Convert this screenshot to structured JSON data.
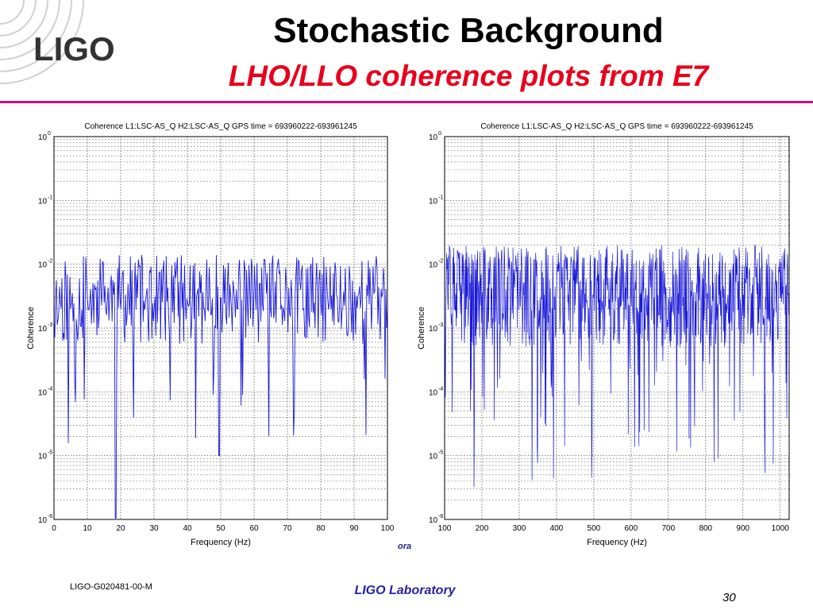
{
  "logo": {
    "text": "LIGO",
    "icon": "ligo-logo-icon"
  },
  "slide": {
    "title": "Stochastic Background",
    "subtitle": "LHO/LLO coherence plots from E7",
    "cropped_text": "ora"
  },
  "footer": {
    "doc_id": "LIGO-G020481-00-M",
    "lab": "LIGO Laboratory",
    "page": "30"
  },
  "colors": {
    "series": "#1a1ad9",
    "title_accent": "#e8001c",
    "rule": "#d40f7d",
    "footer": "#2222aa"
  },
  "chart_data": [
    {
      "type": "line",
      "title": "Coherence L1:LSC-AS_Q H2:LSC-AS_Q  GPS time = 693960222-693961245",
      "xlabel": "Frequency (Hz)",
      "ylabel": "Coherence",
      "xlim": [
        0,
        100
      ],
      "ylim": [
        1e-06,
        1
      ],
      "yscale": "log",
      "grid": true,
      "x_ticks": [
        "0",
        "10",
        "20",
        "30",
        "40",
        "50",
        "60",
        "70",
        "80",
        "90",
        "100"
      ],
      "y_ticks": [
        {
          "base": "10",
          "exp": "0"
        },
        {
          "base": "10",
          "exp": "-1"
        },
        {
          "base": "10",
          "exp": "-2"
        },
        {
          "base": "10",
          "exp": "-3"
        },
        {
          "base": "10",
          "exp": "-4"
        },
        {
          "base": "10",
          "exp": "-5"
        },
        {
          "base": "10",
          "exp": "-6"
        }
      ],
      "series": [
        {
          "x": [
            0.5,
            5,
            10,
            15,
            18.5,
            20,
            25,
            30,
            35,
            40,
            45,
            49.5,
            50,
            55,
            60,
            64.5,
            65,
            70,
            75,
            80,
            85,
            90,
            95,
            100
          ],
          "y": [
            0.003,
            0.002,
            0.003,
            0.0025,
            1e-06,
            0.002,
            0.003,
            0.002,
            0.003,
            0.0025,
            0.002,
            1e-05,
            0.003,
            0.002,
            0.003,
            2e-05,
            0.002,
            0.003,
            0.002,
            0.0025,
            0.003,
            0.002,
            0.003,
            0.002
          ],
          "approx_points": 1000
        }
      ]
    },
    {
      "type": "line",
      "title": "Coherence L1:LSC-AS_Q H2:LSC-AS_Q  GPS time = 693960222-693961245",
      "xlabel": "Frequency (Hz)",
      "ylabel": "Coherence",
      "xlim": [
        100,
        1024
      ],
      "ylim": [
        1e-06,
        1
      ],
      "yscale": "log",
      "grid": true,
      "x_ticks": [
        "100",
        "200",
        "300",
        "400",
        "500",
        "600",
        "700",
        "800",
        "900",
        "1000"
      ],
      "y_ticks": [
        {
          "base": "10",
          "exp": "0"
        },
        {
          "base": "10",
          "exp": "-1"
        },
        {
          "base": "10",
          "exp": "-2"
        },
        {
          "base": "10",
          "exp": "-3"
        },
        {
          "base": "10",
          "exp": "-4"
        },
        {
          "base": "10",
          "exp": "-5"
        },
        {
          "base": "10",
          "exp": "-6"
        }
      ],
      "series": [
        {
          "x": [
            100,
            200,
            300,
            400,
            500,
            600,
            700,
            800,
            900,
            1000,
            1024
          ],
          "y": [
            0.003,
            0.003,
            0.003,
            0.003,
            0.003,
            0.003,
            0.003,
            0.003,
            0.003,
            0.003,
            0.003
          ],
          "approx_points": 9200
        }
      ]
    }
  ]
}
